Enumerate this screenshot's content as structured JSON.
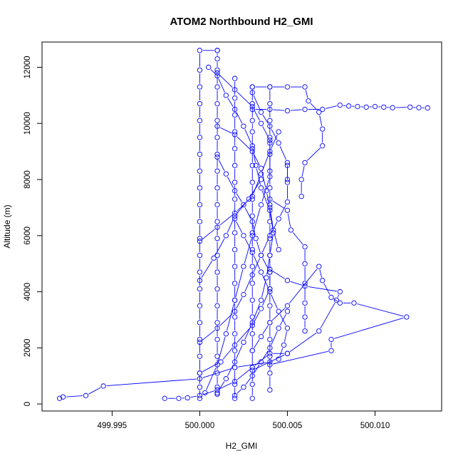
{
  "chart_data": {
    "type": "line",
    "title": "ATOM2 Northbound H2_GMI",
    "xlabel": "H2_GMI",
    "ylabel": "Altitude (m)",
    "xlim": [
      499.991,
      500.0138
    ],
    "ylim": [
      -250,
      12900
    ],
    "x_ticks": [
      499.995,
      500.0,
      500.005,
      500.01
    ],
    "x_tick_labels": [
      "499.995",
      "500.000",
      "500.005",
      "500.010"
    ],
    "y_ticks": [
      0,
      2000,
      4000,
      6000,
      8000,
      10000,
      12000
    ],
    "y_tick_labels": [
      "0",
      "2000",
      "4000",
      "6000",
      "8000",
      "10000",
      "12000"
    ],
    "series_color": "#0000ff",
    "marker": "open-circle",
    "grid": false,
    "series": [
      {
        "points": [
          [
            500.0,
            200
          ],
          [
            500.0,
            600
          ],
          [
            500.0,
            1100
          ],
          [
            500.0,
            1700
          ],
          [
            500.0,
            2300
          ],
          [
            500.0,
            2900
          ],
          [
            500.0,
            3500
          ],
          [
            500.0,
            4100
          ],
          [
            500.0,
            4700
          ],
          [
            500.0,
            5300
          ],
          [
            500.0,
            5900
          ],
          [
            500.0,
            6500
          ],
          [
            500.0,
            7100
          ],
          [
            500.0,
            7700
          ],
          [
            500.0,
            8300
          ],
          [
            500.0,
            8900
          ],
          [
            500.0,
            9500
          ],
          [
            500.0,
            10100
          ],
          [
            500.0,
            10700
          ],
          [
            500.0,
            11300
          ],
          [
            500.0,
            11900
          ],
          [
            500.0,
            12600
          ],
          [
            500.001,
            12600
          ]
        ]
      },
      {
        "points": [
          [
            500.001,
            12600
          ],
          [
            500.001,
            12300
          ],
          [
            500.001,
            11900
          ],
          [
            500.001,
            11300
          ],
          [
            500.001,
            10700
          ],
          [
            500.001,
            10100
          ],
          [
            500.001,
            9500
          ],
          [
            500.001,
            8900
          ],
          [
            500.001,
            8300
          ],
          [
            500.001,
            7700
          ],
          [
            500.001,
            7100
          ],
          [
            500.001,
            6500
          ],
          [
            500.001,
            5900
          ],
          [
            500.001,
            5300
          ],
          [
            500.001,
            4700
          ],
          [
            500.001,
            4100
          ],
          [
            500.001,
            3500
          ],
          [
            500.001,
            2900
          ],
          [
            500.001,
            2300
          ],
          [
            500.001,
            1700
          ],
          [
            500.001,
            1100
          ],
          [
            500.001,
            600
          ],
          [
            500.001,
            350
          ]
        ]
      },
      {
        "points": [
          [
            500.002,
            200
          ],
          [
            500.002,
            700
          ],
          [
            500.002,
            1300
          ],
          [
            500.002,
            1900
          ],
          [
            500.002,
            2500
          ],
          [
            500.002,
            3100
          ],
          [
            500.002,
            3700
          ],
          [
            500.002,
            4300
          ],
          [
            500.002,
            4900
          ],
          [
            500.002,
            5500
          ],
          [
            500.002,
            6100
          ],
          [
            500.002,
            6700
          ],
          [
            500.002,
            7300
          ],
          [
            500.002,
            7900
          ],
          [
            500.002,
            8500
          ],
          [
            500.002,
            9100
          ],
          [
            500.002,
            9700
          ],
          [
            500.002,
            10300
          ],
          [
            500.002,
            10900
          ],
          [
            500.002,
            11600
          ]
        ]
      },
      {
        "points": [
          [
            500.003,
            11300
          ],
          [
            500.003,
            10700
          ],
          [
            500.003,
            10100
          ],
          [
            500.003,
            9700
          ],
          [
            500.003,
            9100
          ],
          [
            500.003,
            8500
          ],
          [
            500.003,
            7900
          ],
          [
            500.003,
            7300
          ],
          [
            500.003,
            6700
          ],
          [
            500.003,
            6100
          ],
          [
            500.003,
            5500
          ],
          [
            500.003,
            4900
          ],
          [
            500.003,
            4300
          ],
          [
            500.003,
            3700
          ],
          [
            500.003,
            3100
          ],
          [
            500.003,
            2500
          ],
          [
            500.003,
            1900
          ],
          [
            500.003,
            1300
          ],
          [
            500.003,
            700
          ],
          [
            500.003,
            200
          ]
        ]
      },
      {
        "points": [
          [
            500.004,
            11300
          ],
          [
            500.004,
            10700
          ],
          [
            500.004,
            10100
          ],
          [
            500.004,
            9500
          ],
          [
            500.004,
            8900
          ],
          [
            500.004,
            8300
          ],
          [
            500.004,
            7700
          ],
          [
            500.004,
            7100
          ],
          [
            500.004,
            6500
          ],
          [
            500.004,
            5900
          ],
          [
            500.004,
            5300
          ],
          [
            500.004,
            4700
          ],
          [
            500.004,
            4100
          ],
          [
            500.004,
            3500
          ],
          [
            500.004,
            2900
          ],
          [
            500.004,
            2300
          ],
          [
            500.004,
            1700
          ],
          [
            500.004,
            1100
          ],
          [
            500.004,
            500
          ]
        ]
      },
      {
        "points": [
          [
            500.003,
            10500
          ],
          [
            500.004,
            10500
          ],
          [
            500.005,
            10450
          ],
          [
            500.006,
            10500
          ],
          [
            500.007,
            10500
          ],
          [
            500.008,
            10650
          ],
          [
            500.0085,
            10620
          ],
          [
            500.009,
            10600
          ],
          [
            500.0095,
            10580
          ],
          [
            500.01,
            10600
          ],
          [
            500.0105,
            10580
          ],
          [
            500.011,
            10560
          ],
          [
            500.012,
            10580
          ],
          [
            500.0125,
            10560
          ],
          [
            500.013,
            10550
          ]
        ]
      },
      {
        "points": [
          [
            500.003,
            11300
          ],
          [
            500.004,
            11300
          ],
          [
            500.005,
            11300
          ],
          [
            500.006,
            11300
          ],
          [
            500.0062,
            10800
          ],
          [
            500.0068,
            10400
          ],
          [
            500.007,
            9800
          ],
          [
            500.007,
            9200
          ],
          [
            500.006,
            8600
          ],
          [
            500.0058,
            8000
          ],
          [
            500.0058,
            7400
          ]
        ]
      },
      {
        "points": [
          [
            500.004,
            7300
          ],
          [
            500.005,
            6900
          ],
          [
            500.0052,
            6200
          ],
          [
            500.006,
            5600
          ],
          [
            500.006,
            5000
          ],
          [
            500.006,
            4300
          ],
          [
            500.006,
            3600
          ],
          [
            500.006,
            3100
          ],
          [
            500.006,
            2600
          ]
        ]
      },
      {
        "points": [
          [
            500.003,
            1900
          ],
          [
            500.0035,
            2400
          ],
          [
            500.004,
            2900
          ],
          [
            500.005,
            3500
          ],
          [
            500.0068,
            4900
          ],
          [
            500.007,
            4400
          ],
          [
            500.0075,
            3800
          ],
          [
            500.008,
            3600
          ],
          [
            500.0088,
            3600
          ],
          [
            500.0118,
            3100
          ],
          [
            500.0075,
            2300
          ],
          [
            500.0075,
            1900
          ],
          [
            500.004,
            1400
          ]
        ]
      },
      {
        "points": [
          [
            500.004,
            4800
          ],
          [
            500.005,
            4400
          ],
          [
            500.006,
            4200
          ],
          [
            500.008,
            4000
          ],
          [
            500.0078,
            3700
          ],
          [
            500.0068,
            2600
          ],
          [
            500.005,
            1800
          ],
          [
            500.003,
            1200
          ]
        ]
      },
      {
        "points": [
          [
            499.992,
            200
          ],
          [
            499.9922,
            250
          ],
          [
            499.9935,
            300
          ],
          [
            499.9945,
            640
          ],
          [
            500.0,
            900
          ],
          [
            500.002,
            1300
          ],
          [
            500.004,
            1500
          ]
        ]
      },
      {
        "points": [
          [
            499.998,
            200
          ],
          [
            499.9988,
            200
          ],
          [
            499.9993,
            220
          ],
          [
            500.0,
            300
          ],
          [
            500.001,
            500
          ],
          [
            500.002,
            800
          ],
          [
            500.003,
            1300
          ],
          [
            500.004,
            1800
          ],
          [
            500.005,
            1800
          ]
        ]
      },
      {
        "points": [
          [
            500.0,
            1100
          ],
          [
            500.0012,
            1500
          ],
          [
            500.002,
            2100
          ],
          [
            500.003,
            2800
          ],
          [
            500.0035,
            3400
          ],
          [
            500.004,
            4100
          ],
          [
            500.004,
            4700
          ]
        ]
      },
      {
        "points": [
          [
            500.001,
            9900
          ],
          [
            500.002,
            9600
          ],
          [
            500.003,
            9000
          ],
          [
            500.0035,
            8400
          ],
          [
            500.0038,
            7600
          ],
          [
            500.004,
            7000
          ],
          [
            500.0042,
            6200
          ],
          [
            500.0045,
            5500
          ]
        ]
      },
      {
        "points": [
          [
            500.0,
            5800
          ],
          [
            500.001,
            6300
          ],
          [
            500.002,
            6800
          ],
          [
            500.003,
            7400
          ],
          [
            500.0035,
            8200
          ],
          [
            500.004,
            9000
          ],
          [
            500.0045,
            9700
          ]
        ]
      },
      {
        "points": [
          [
            500.001,
            11800
          ],
          [
            500.002,
            11200
          ],
          [
            500.003,
            10600
          ],
          [
            500.0035,
            10000
          ],
          [
            500.004,
            9400
          ]
        ]
      },
      {
        "points": [
          [
            500.0005,
            12000
          ],
          [
            500.001,
            11700
          ],
          [
            500.0015,
            11000
          ],
          [
            500.002,
            10500
          ],
          [
            500.0025,
            9900
          ],
          [
            500.003,
            9200
          ],
          [
            500.0032,
            8500
          ],
          [
            500.0035,
            7700
          ],
          [
            500.004,
            6900
          ],
          [
            500.0042,
            6100
          ],
          [
            500.004,
            5300
          ],
          [
            500.0038,
            4500
          ],
          [
            500.0035,
            3700
          ],
          [
            500.003,
            2900
          ],
          [
            500.0025,
            2200
          ],
          [
            500.002,
            1500
          ],
          [
            500.0015,
            900
          ],
          [
            500.001,
            400
          ]
        ]
      },
      {
        "points": [
          [
            500.0,
            2200
          ],
          [
            500.001,
            2700
          ],
          [
            500.002,
            3300
          ],
          [
            500.0025,
            3900
          ],
          [
            500.003,
            4600
          ],
          [
            500.0035,
            5300
          ],
          [
            500.004,
            6000
          ],
          [
            500.0045,
            6600
          ],
          [
            500.005,
            7200
          ],
          [
            500.005,
            7900
          ],
          [
            500.005,
            8500
          ]
        ]
      },
      {
        "points": [
          [
            500.0003,
            400
          ],
          [
            500.001,
            1400
          ],
          [
            500.0015,
            2500
          ],
          [
            500.002,
            3700
          ],
          [
            500.0025,
            4900
          ],
          [
            500.003,
            6000
          ],
          [
            500.0035,
            7100
          ],
          [
            500.004,
            8100
          ],
          [
            500.004,
            9300
          ]
        ]
      },
      {
        "points": [
          [
            500.0,
            4400
          ],
          [
            500.0008,
            5200
          ],
          [
            500.0015,
            6000
          ],
          [
            500.002,
            6700
          ],
          [
            500.0028,
            7300
          ],
          [
            500.0035,
            8000
          ]
        ]
      },
      {
        "points": [
          [
            500.002,
            300
          ],
          [
            500.0025,
            600
          ],
          [
            500.003,
            1000
          ],
          [
            500.0035,
            1500
          ],
          [
            500.004,
            2000
          ],
          [
            500.0045,
            2700
          ],
          [
            500.005,
            3300
          ]
        ]
      },
      {
        "points": [
          [
            500.003,
            11100
          ],
          [
            500.0035,
            10400
          ],
          [
            500.004,
            9900
          ],
          [
            500.0045,
            9300
          ],
          [
            500.005,
            8600
          ],
          [
            500.005,
            8000
          ]
        ]
      },
      {
        "points": [
          [
            500.002,
            6600
          ],
          [
            500.0025,
            6000
          ],
          [
            500.003,
            5400
          ],
          [
            500.0035,
            4700
          ],
          [
            500.004,
            4000
          ],
          [
            500.0045,
            3300
          ],
          [
            500.005,
            2700
          ],
          [
            500.0048,
            2100
          ],
          [
            500.0045,
            1600
          ]
        ]
      },
      {
        "points": [
          [
            500.001,
            8800
          ],
          [
            500.0015,
            8200
          ],
          [
            500.002,
            7600
          ],
          [
            500.0025,
            7100
          ],
          [
            500.003,
            6500
          ],
          [
            500.0032,
            5900
          ],
          [
            500.0035,
            5300
          ],
          [
            500.004,
            4700
          ]
        ]
      }
    ]
  }
}
